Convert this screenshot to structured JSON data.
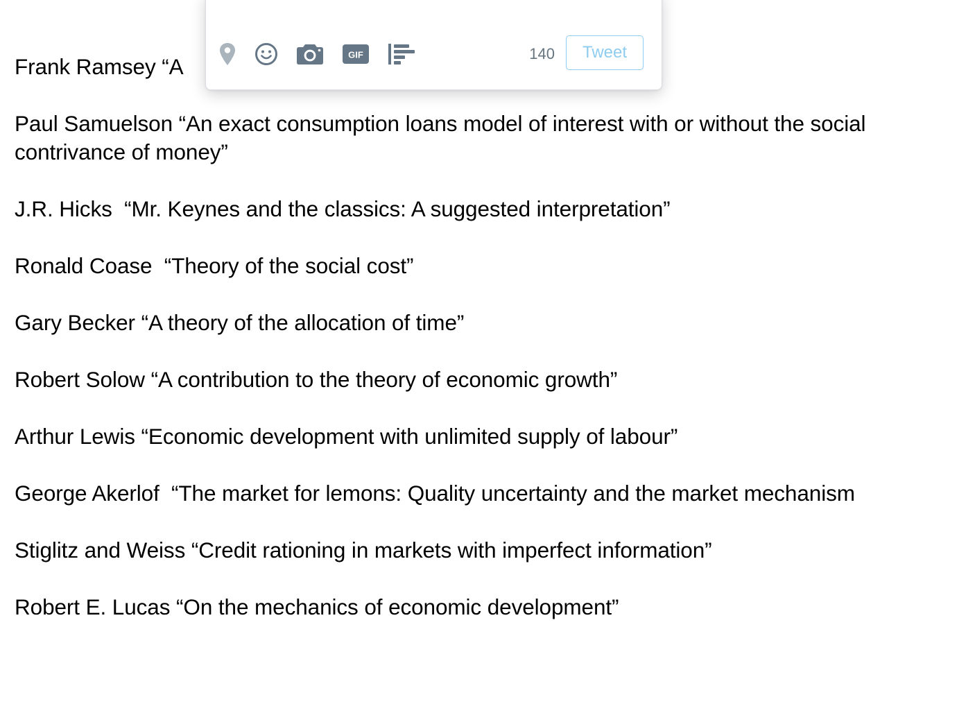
{
  "document": {
    "lines": [
      {
        "author": "Frank Ramsey",
        "title": "“A"
      },
      {
        "author": "Paul Samuelson",
        "title": "“An exact consumption loans model of interest with or without the social contrivance of money”"
      },
      {
        "author": "J.R. Hicks ",
        "title": "“Mr. Keynes and the classics: A suggested interpretation”"
      },
      {
        "author": "Ronald Coase ",
        "title": "“Theory of the social cost”"
      },
      {
        "author": "Gary Becker",
        "title": "“A theory of the allocation of time”"
      },
      {
        "author": "Robert Solow",
        "title": "“A contribution to the theory of economic growth”"
      },
      {
        "author": "Arthur Lewis",
        "title": "“Economic development with unlimited supply of labour”"
      },
      {
        "author": "George Akerlof ",
        "title": "“The market for lemons: Quality uncertainty and the market mechanism"
      },
      {
        "author": "Stiglitz and Weiss",
        "title": "“Credit rationing in markets with imperfect information”"
      },
      {
        "author": "Robert E. Lucas",
        "title": "“On the mechanics of economic development”"
      }
    ]
  },
  "tweet_box": {
    "char_count": "140",
    "tweet_label": "Tweet",
    "icons": [
      "location-pin-icon",
      "emoji-icon",
      "camera-icon",
      "gif-icon",
      "poll-icon"
    ],
    "colors": {
      "icon": "#657786",
      "icon_disabled": "#a9b4bc",
      "tweet_button": "#8ecdf0"
    }
  }
}
